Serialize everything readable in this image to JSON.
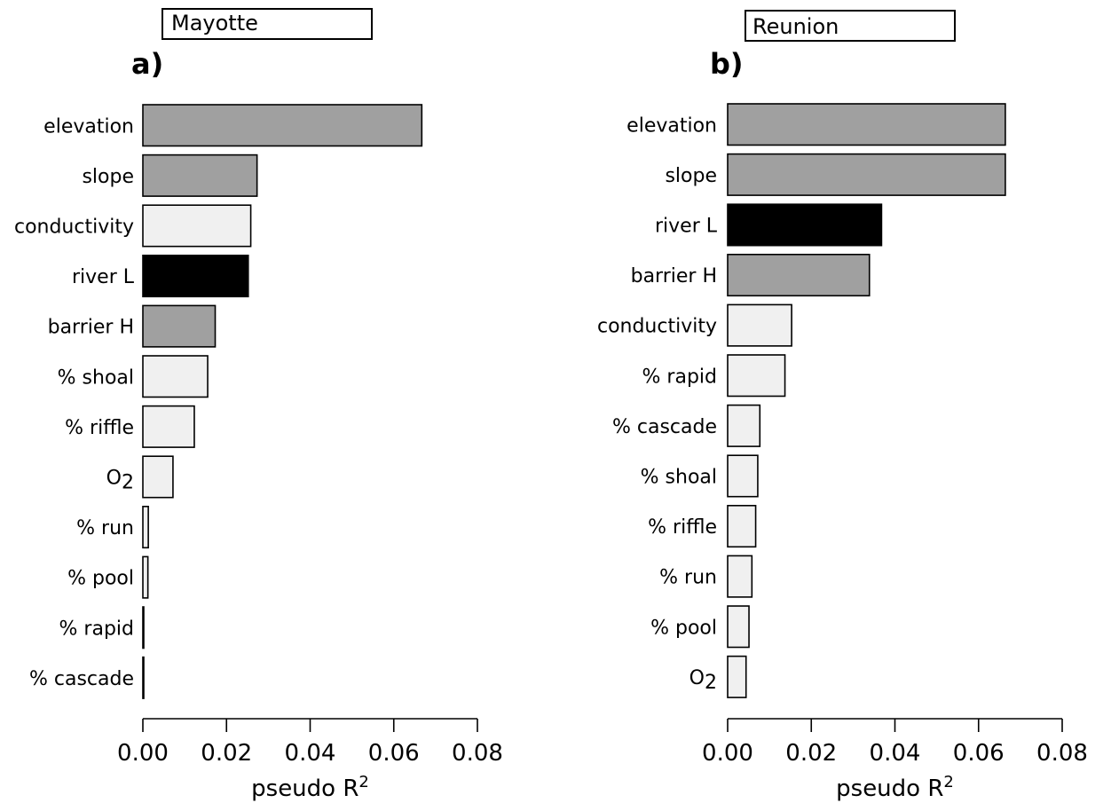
{
  "colors": {
    "dark": "#000000",
    "medium": "#a0a0a0",
    "light": "#f0f0f0",
    "outline": "#000000"
  },
  "chart_data": [
    {
      "type": "bar",
      "orientation": "horizontal",
      "panel_label": "a)",
      "title": "Mayotte",
      "xlabel": "pseudo R",
      "xlabel_superscript": "2",
      "xlim": [
        0,
        0.08
      ],
      "xticks": [
        "0.00",
        "0.02",
        "0.04",
        "0.06",
        "0.08"
      ],
      "xtick_values": [
        0,
        0.02,
        0.04,
        0.06,
        0.08
      ],
      "grid": false,
      "categories": [
        {
          "label": "elevation",
          "value": 0.0667,
          "shade": "medium"
        },
        {
          "label": "slope",
          "value": 0.0273,
          "shade": "medium"
        },
        {
          "label": "conductivity",
          "value": 0.0258,
          "shade": "light"
        },
        {
          "label": "river L",
          "value": 0.0252,
          "shade": "dark"
        },
        {
          "label": "barrier H",
          "value": 0.0173,
          "shade": "medium"
        },
        {
          "label": "% shoal",
          "value": 0.0155,
          "shade": "light"
        },
        {
          "label": "% riffle",
          "value": 0.0123,
          "shade": "light"
        },
        {
          "label": "O",
          "sub": "2",
          "value": 0.0072,
          "shade": "light"
        },
        {
          "label": "% run",
          "value": 0.0013,
          "shade": "light"
        },
        {
          "label": "% pool",
          "value": 0.0012,
          "shade": "light"
        },
        {
          "label": "% rapid",
          "value": 0.0001,
          "shade": "light"
        },
        {
          "label": "% cascade",
          "value": 0.0001,
          "shade": "light"
        }
      ]
    },
    {
      "type": "bar",
      "orientation": "horizontal",
      "panel_label": "b)",
      "title": "Reunion",
      "xlabel": "pseudo R",
      "xlabel_superscript": "2",
      "xlim": [
        0,
        0.08
      ],
      "xticks": [
        "0.00",
        "0.02",
        "0.04",
        "0.06",
        "0.08"
      ],
      "xtick_values": [
        0,
        0.02,
        0.04,
        0.06,
        0.08
      ],
      "grid": false,
      "categories": [
        {
          "label": "elevation",
          "value": 0.0664,
          "shade": "medium"
        },
        {
          "label": "slope",
          "value": 0.0664,
          "shade": "medium"
        },
        {
          "label": "river L",
          "value": 0.0368,
          "shade": "dark"
        },
        {
          "label": "barrier H",
          "value": 0.0339,
          "shade": "medium"
        },
        {
          "label": "conductivity",
          "value": 0.0153,
          "shade": "light"
        },
        {
          "label": "% rapid",
          "value": 0.0137,
          "shade": "light"
        },
        {
          "label": "% cascade",
          "value": 0.0077,
          "shade": "light"
        },
        {
          "label": "% shoal",
          "value": 0.0072,
          "shade": "light"
        },
        {
          "label": "% riffle",
          "value": 0.0067,
          "shade": "light"
        },
        {
          "label": "% run",
          "value": 0.0058,
          "shade": "light"
        },
        {
          "label": "% pool",
          "value": 0.0051,
          "shade": "light"
        },
        {
          "label": "O",
          "sub": "2",
          "value": 0.0044,
          "shade": "light"
        }
      ]
    }
  ]
}
